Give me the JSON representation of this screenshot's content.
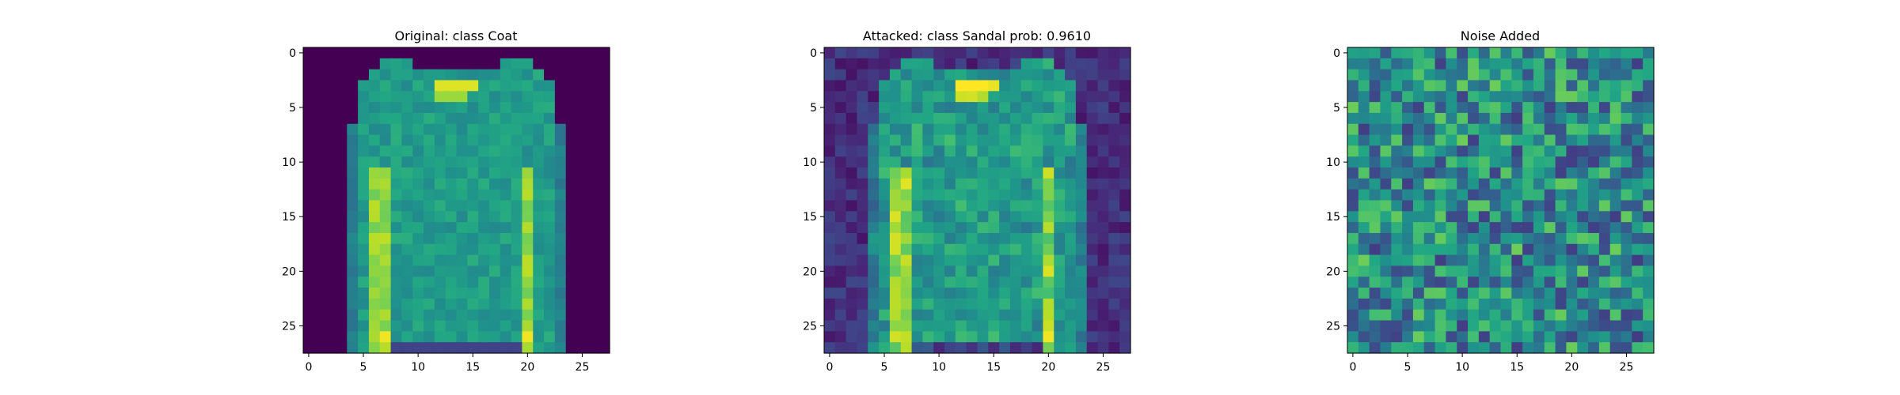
{
  "chart_data": [
    {
      "type": "heatmap",
      "title": "Original: class Coat",
      "pattern": "original",
      "xlim": [
        0,
        27
      ],
      "ylim": [
        27,
        0
      ],
      "xticks": [
        "0",
        "5",
        "10",
        "15",
        "20",
        "25"
      ],
      "yticks": [
        "0",
        "5",
        "10",
        "15",
        "20",
        "25"
      ],
      "colormap": "viridis",
      "grid": false
    },
    {
      "type": "heatmap",
      "title": "Attacked: class Sandal prob: 0.9610",
      "pattern": "attacked",
      "xlim": [
        0,
        27
      ],
      "ylim": [
        27,
        0
      ],
      "xticks": [
        "0",
        "5",
        "10",
        "15",
        "20",
        "25"
      ],
      "yticks": [
        "0",
        "5",
        "10",
        "15",
        "20",
        "25"
      ],
      "colormap": "viridis",
      "grid": false
    },
    {
      "type": "heatmap",
      "title": "Noise Added",
      "pattern": "noise",
      "xlim": [
        0,
        27
      ],
      "ylim": [
        27,
        0
      ],
      "xticks": [
        "0",
        "5",
        "10",
        "15",
        "20",
        "25"
      ],
      "yticks": [
        "0",
        "5",
        "10",
        "15",
        "20",
        "25"
      ],
      "colormap": "viridis",
      "grid": false
    }
  ]
}
